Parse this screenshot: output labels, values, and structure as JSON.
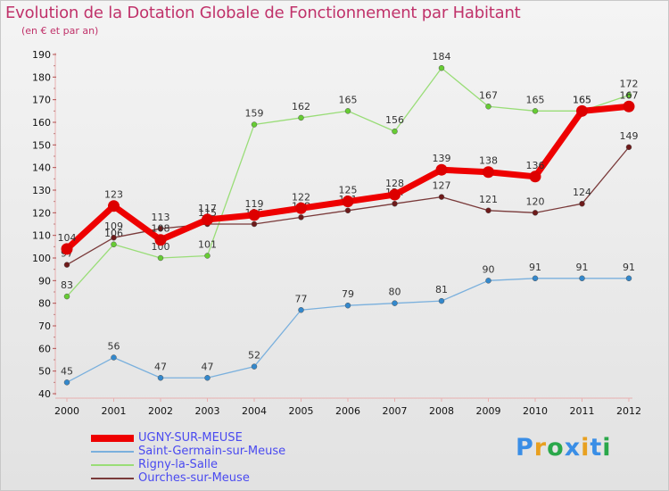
{
  "header": {
    "title": "Evolution de la Dotation Globale de Fonctionnement par Habitant",
    "subtitle": "(en € et par an)"
  },
  "colors": {
    "title": "#c0326a",
    "legend_text": "#4a4af0",
    "axis": "#e8b0b0"
  },
  "chart_data": {
    "type": "line",
    "title": "Evolution de la Dotation Globale de Fonctionnement par Habitant",
    "subtitle": "(en € et par an)",
    "xlabel": "",
    "ylabel": "",
    "x": [
      2000,
      2001,
      2002,
      2003,
      2004,
      2005,
      2006,
      2007,
      2008,
      2009,
      2010,
      2011,
      2012
    ],
    "ylim": [
      40,
      190
    ],
    "yticks": [
      40,
      50,
      60,
      70,
      80,
      90,
      100,
      110,
      120,
      130,
      140,
      150,
      160,
      170,
      180,
      190
    ],
    "grid": false,
    "legend_position": "bottom-left",
    "series": [
      {
        "name": "Rigny-la-Salle",
        "color": "#99dd77",
        "marker": "#66cc33",
        "values": [
          83,
          106,
          100,
          101,
          159,
          162,
          165,
          156,
          184,
          167,
          165,
          165,
          172
        ]
      },
      {
        "name": "Ourches-sur-Meuse",
        "color": "#7a3a3a",
        "marker": "#6e1a1a",
        "values": [
          97,
          109,
          113,
          115,
          115,
          118,
          121,
          124,
          127,
          121,
          120,
          124,
          149
        ]
      },
      {
        "name": "Saint-Germain-sur-Meuse",
        "color": "#7ab0dd",
        "marker": "#3388cc",
        "values": [
          45,
          56,
          47,
          47,
          52,
          77,
          79,
          80,
          81,
          90,
          91,
          91,
          91
        ]
      },
      {
        "name": "UGNY-SUR-MEUSE",
        "color": "#ee0000",
        "marker": "#dd0000",
        "values": [
          104,
          123,
          108,
          117,
          119,
          122,
          125,
          128,
          139,
          138,
          136,
          165,
          167
        ]
      }
    ]
  },
  "legend": {
    "items": [
      {
        "label": "UGNY-SUR-MEUSE",
        "color": "#ee0000"
      },
      {
        "label": "Saint-Germain-sur-Meuse",
        "color": "#7ab0dd"
      },
      {
        "label": "Rigny-la-Salle",
        "color": "#99dd77"
      },
      {
        "label": "Ourches-sur-Meuse",
        "color": "#7a3a3a"
      }
    ]
  },
  "logo": {
    "letters": [
      "P",
      "r",
      "o",
      "x",
      "i",
      "t",
      "i"
    ],
    "colors": [
      "#3a8ee6",
      "#e8a020",
      "#2aa84a",
      "#3a8ee6",
      "#e8a020",
      "#3a8ee6",
      "#2aa84a"
    ]
  }
}
